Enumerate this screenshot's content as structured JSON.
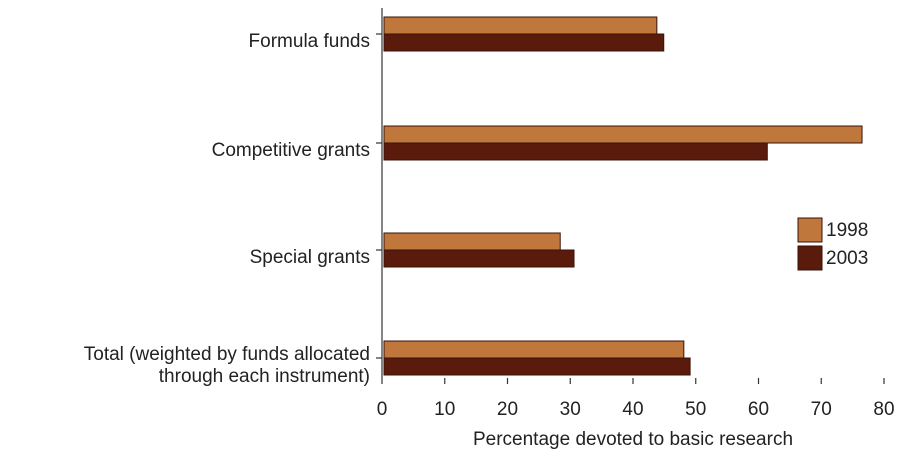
{
  "chart_data": {
    "type": "hbar",
    "x_label": "Percentage devoted to basic research",
    "categories": [
      "Formula funds",
      "Competitive grants",
      "Special grants",
      "Total (weighted by funds allocated\nthrough each instrument)"
    ],
    "series": [
      {
        "name": "1998",
        "color": "#c0773c",
        "values": [
          43.8,
          76.5,
          28.4,
          48.1
        ]
      },
      {
        "name": "2003",
        "color": "#5a1a0c",
        "values": [
          44.9,
          61.4,
          30.6,
          49.1
        ]
      }
    ],
    "xlim": [
      0,
      80
    ],
    "xticks": [
      0,
      10,
      20,
      30,
      40,
      50,
      60,
      70,
      80
    ],
    "legend": "right"
  }
}
